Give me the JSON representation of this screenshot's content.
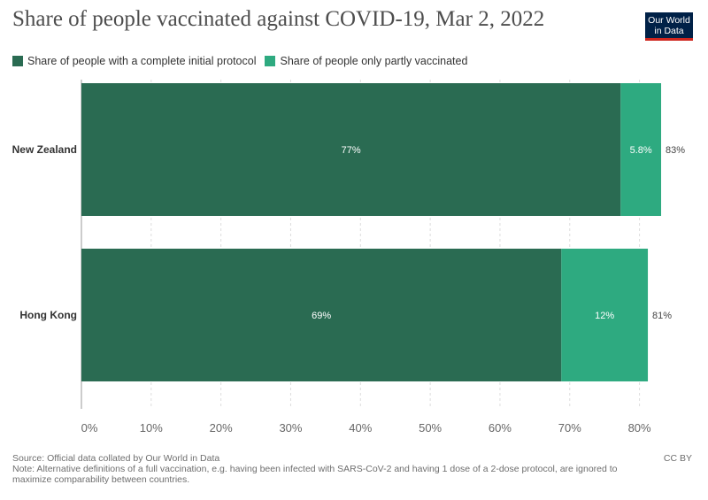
{
  "header": {
    "title": "Share of people vaccinated against COVID-19, Mar 2, 2022",
    "logo_line1": "Our World",
    "logo_line2": "in Data"
  },
  "colors": {
    "complete": "#2a6b52",
    "partial": "#2eaa80",
    "grid": "#dddddd",
    "logo_bg": "#002147",
    "logo_accent": "#ce261e"
  },
  "chart_data": {
    "type": "bar",
    "orientation": "horizontal",
    "stacked": true,
    "title": "Share of people vaccinated against COVID-19, Mar 2, 2022",
    "categories": [
      "New Zealand",
      "Hong Kong"
    ],
    "series": [
      {
        "name": "Share of people with a complete initial protocol",
        "values": [
          77.3,
          68.8
        ],
        "labels": [
          "77%",
          "69%"
        ]
      },
      {
        "name": "Share of people only partly vaccinated",
        "values": [
          5.8,
          12.4
        ],
        "labels": [
          "5.8%",
          "12%"
        ]
      }
    ],
    "totals": [
      "83%",
      "81%"
    ],
    "xlim": [
      0,
      85
    ],
    "xticks": [
      0,
      10,
      20,
      30,
      40,
      50,
      60,
      70,
      80
    ],
    "xtick_labels": [
      "0%",
      "10%",
      "20%",
      "30%",
      "40%",
      "50%",
      "60%",
      "70%",
      "80%"
    ],
    "grid": true,
    "legend_position": "top-left"
  },
  "footer": {
    "source": "Source: Official data collated by Our World in Data",
    "note": "Note: Alternative definitions of a full vaccination, e.g. having been infected with SARS-CoV-2 and having 1 dose of a 2-dose protocol, are ignored to maximize comparability between countries.",
    "license": "CC BY"
  }
}
